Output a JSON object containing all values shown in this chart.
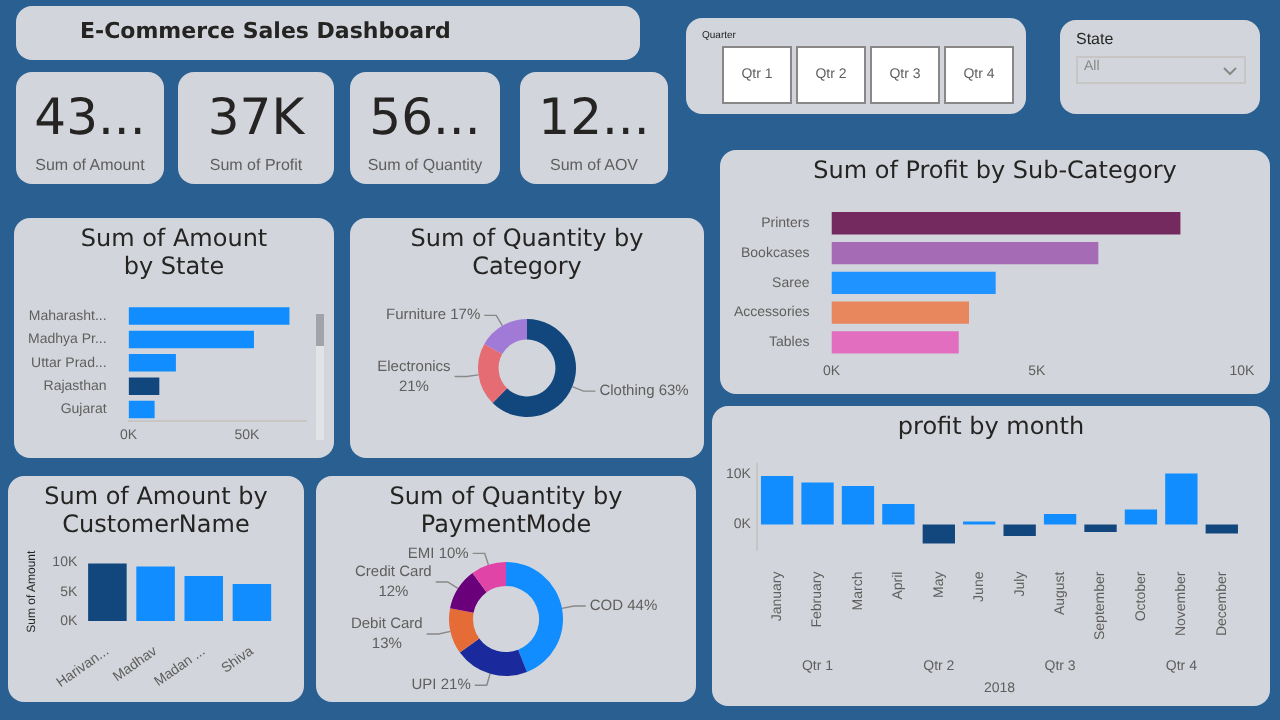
{
  "chart_data": [
    {
      "type": "other",
      "title": "E-Commerce Sales Dashboard",
      "annotations": [
        "43...",
        "Sum of Amount",
        "37K",
        "Sum of Profit",
        "56...",
        "Sum of Quantity",
        "12...",
        "Sum of AOV",
        "Quarter",
        "Qtr 1",
        "Qtr 2",
        "Qtr 3",
        "Qtr 4",
        "State",
        "All"
      ]
    },
    {
      "type": "bar",
      "orientation": "horizontal",
      "title": "Sum of Amount by State",
      "categories": [
        "Maharasht...",
        "Madhya Pr...",
        "Uttar Prad...",
        "Rajasthan",
        "Gujarat"
      ],
      "values": [
        68000,
        53000,
        20000,
        13000,
        11000
      ],
      "colors": [
        "#118dff",
        "#118dff",
        "#118dff",
        "#12477d",
        "#118dff"
      ],
      "xlim": [
        0,
        75000
      ],
      "xticks": [
        {
          "value": 0,
          "label": "0K"
        },
        {
          "value": 50000,
          "label": "50K"
        }
      ]
    },
    {
      "type": "donut",
      "title": "Sum of Quantity by Category",
      "categories": [
        "Clothing",
        "Electronics",
        "Furniture"
      ],
      "values": [
        63,
        21,
        17
      ],
      "value_labels": [
        "63%",
        "21%",
        "17%"
      ],
      "colors": [
        "#12477d",
        "#e66c74",
        "#a07ad6"
      ]
    },
    {
      "type": "bar",
      "orientation": "horizontal",
      "title": "Sum of Profit by Sub-Category",
      "categories": [
        "Printers",
        "Bookcases",
        "Saree",
        "Accessories",
        "Tables"
      ],
      "values": [
        8500,
        6500,
        4000,
        3350,
        3100
      ],
      "colors": [
        "#74295f",
        "#a66bb5",
        "#1f93ff",
        "#e8865d",
        "#e26ec0"
      ],
      "xlim": [
        0,
        10000
      ],
      "xticks": [
        {
          "value": 0,
          "label": "0K"
        },
        {
          "value": 5000,
          "label": "5K"
        },
        {
          "value": 10000,
          "label": "10K"
        }
      ]
    },
    {
      "type": "bar",
      "title": "profit by month",
      "categories": [
        "January",
        "February",
        "March",
        "April",
        "May",
        "June",
        "July",
        "August",
        "September",
        "October",
        "November",
        "December"
      ],
      "values": [
        9700,
        8400,
        7700,
        4100,
        -3800,
        600,
        -2300,
        2100,
        -1500,
        3000,
        10200,
        -1800
      ],
      "colors": [
        "#118dff",
        "#118dff",
        "#118dff",
        "#118dff",
        "#12477d",
        "#118dff",
        "#12477d",
        "#118dff",
        "#12477d",
        "#118dff",
        "#118dff",
        "#12477d"
      ],
      "ylim": [
        -5000,
        12000
      ],
      "yticks": [
        {
          "value": 0,
          "label": "0K"
        },
        {
          "value": 10000,
          "label": "10K"
        }
      ],
      "annotations": [
        "Qtr 1",
        "Qtr 2",
        "Qtr 3",
        "Qtr 4",
        "2018"
      ]
    },
    {
      "type": "bar",
      "title": "Sum of Amount by CustomerName",
      "ylabel": "Sum of Amount",
      "categories": [
        "Harivan...",
        "Madhav",
        "Madan ...",
        "Shiva"
      ],
      "values": [
        9800,
        9300,
        7700,
        6300
      ],
      "colors": [
        "#12477d",
        "#118dff",
        "#118dff",
        "#118dff"
      ],
      "ylim": [
        0,
        10000
      ],
      "yticks": [
        {
          "value": 0,
          "label": "0K"
        },
        {
          "value": 5000,
          "label": "5K"
        },
        {
          "value": 10000,
          "label": "10K"
        }
      ]
    },
    {
      "type": "donut",
      "title": "Sum of Quantity by PaymentMode",
      "categories": [
        "COD",
        "UPI",
        "Debit Card",
        "Credit Card",
        "EMI"
      ],
      "values": [
        44,
        21,
        13,
        12,
        10
      ],
      "value_labels": [
        "44%",
        "21%",
        "13%",
        "12%",
        "10%"
      ],
      "colors": [
        "#118dff",
        "#1a2a9c",
        "#e66c37",
        "#6b007b",
        "#e044a7"
      ]
    }
  ]
}
